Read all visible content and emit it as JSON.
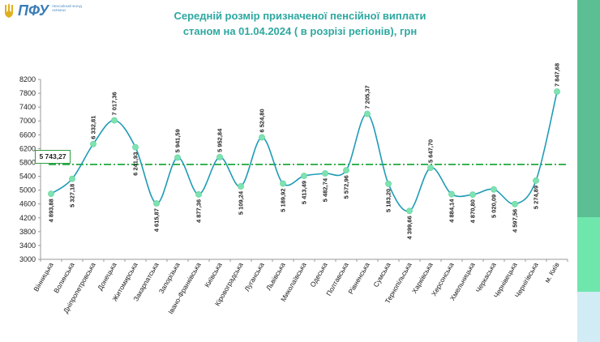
{
  "logo": {
    "text": "ПФУ",
    "subtitle": "ПЕНСІЙНИЙ ФОНД УКРАЇНИ"
  },
  "colors": {
    "title": "#2ea8a0",
    "line": "#1f9bb5",
    "marker": "#7de3b1",
    "average_line": "#1ea83c"
  },
  "chart_data": {
    "type": "line",
    "title": "Середній розмір призначеної пенсійної виплати станом на 01.04.2024 ( в розрізі регіонів), грн",
    "title_line1": "Середній розмір призначеної пенсійної виплати",
    "title_line2": "станом на 01.04.2024 ( в розрізі регіонів), грн",
    "categories": [
      "Вінницька",
      "Волинська",
      "Дніпропетровська",
      "Донецька",
      "Житомирська",
      "Закарпатська",
      "Запорізька",
      "Івано-Франківська",
      "Київська",
      "Кіровоградська",
      "Луганська",
      "Львівська",
      "Миколаївська",
      "Одеська",
      "Полтавська",
      "Рівненська",
      "Сумська",
      "Тернопільська",
      "Харківська",
      "Херсонська",
      "Хмельницька",
      "Черкаська",
      "Чернівецька",
      "Чернігівська",
      "м. Київ"
    ],
    "values": [
      4893.88,
      5327.18,
      6332.81,
      7017.36,
      6241.93,
      4615.87,
      5941.59,
      4877.36,
      5952.84,
      5109.24,
      6524.8,
      5189.92,
      5413.49,
      5482.74,
      5572.96,
      7205.37,
      5183.2,
      4399.66,
      5647.7,
      4884.14,
      4870.8,
      5020.09,
      4597.56,
      5274.89,
      7847.68
    ],
    "value_labels": [
      "4 893,88",
      "5 327,18",
      "6 332,81",
      "7 017,36",
      "6 241,93",
      "4 615,87",
      "5 941,59",
      "4 877,36",
      "5 952,84",
      "5 109,24",
      "6 524,80",
      "5 189,92",
      "5 413,49",
      "5 482,74",
      "5 572,96",
      "7 205,37",
      "5 183,20",
      "4 399,66",
      "5 647,70",
      "4 884,14",
      "4 870,80",
      "5 020,09",
      "4 597,56",
      "5 274,89",
      "7 847,68"
    ],
    "label_above": [
      false,
      false,
      true,
      true,
      false,
      false,
      true,
      false,
      true,
      false,
      true,
      false,
      false,
      false,
      false,
      true,
      false,
      false,
      true,
      false,
      false,
      false,
      false,
      false,
      true
    ],
    "average": 5743.27,
    "average_label": "5 743,27",
    "ylim": [
      3000,
      8200
    ],
    "yticks": [
      3000,
      3400,
      3800,
      4200,
      4600,
      5000,
      5400,
      5800,
      6200,
      6600,
      7000,
      7400,
      7800,
      8200
    ]
  }
}
